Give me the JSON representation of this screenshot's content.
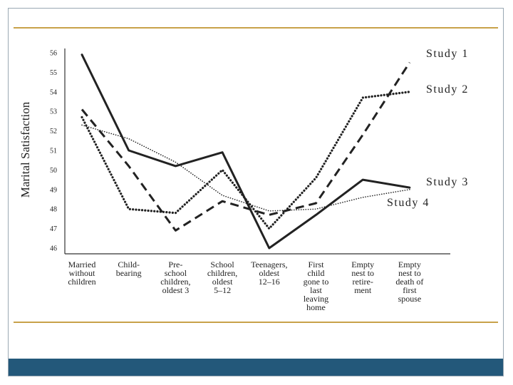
{
  "colors": {
    "bar": "#23587a",
    "panel_rule": "#c8a24a",
    "ink": "#222222"
  },
  "chart_data": {
    "type": "line",
    "ylabel": "Marital Satisfaction",
    "xlabel": "",
    "ylim": [
      46,
      56
    ],
    "yticks": [
      46,
      47,
      48,
      49,
      50,
      51,
      52,
      53,
      54,
      55,
      56
    ],
    "categories": [
      [
        "Married",
        "without",
        "children"
      ],
      [
        "Child-",
        "bearing"
      ],
      [
        "Pre-",
        "school",
        "children,",
        "oldest 3"
      ],
      [
        "School",
        "children,",
        "oldest",
        "5–12"
      ],
      [
        "Teenagers,",
        "oldest",
        "12–16"
      ],
      [
        "First",
        "child",
        "gone to",
        "last",
        "leaving",
        "home"
      ],
      [
        "Empty",
        "nest to",
        "retire-",
        "ment"
      ],
      [
        "Empty",
        "nest to",
        "death of",
        "first",
        "spouse"
      ]
    ],
    "series": [
      {
        "name": "Study 1",
        "label_text": "Study 1",
        "style": "dashed",
        "x": [
          0,
          1,
          2,
          3,
          4,
          5,
          6,
          7
        ],
        "values": [
          53.1,
          50.2,
          46.9,
          48.4,
          47.7,
          48.3,
          51.8,
          55.5
        ]
      },
      {
        "name": "Study 2",
        "label_text": "Study 2",
        "style": "dotted",
        "x": [
          0,
          1,
          2,
          3,
          4,
          5,
          6,
          7
        ],
        "values": [
          52.7,
          48.0,
          47.8,
          50.0,
          47.0,
          49.6,
          53.7,
          54.0
        ]
      },
      {
        "name": "Study 3",
        "label_text": "Study 3",
        "style": "solid",
        "x": [
          0,
          1,
          2,
          3,
          4,
          5,
          6,
          7
        ],
        "values": [
          55.9,
          51.0,
          50.2,
          50.9,
          46.0,
          47.7,
          49.5,
          49.1
        ]
      },
      {
        "name": "Study 4",
        "label_text": "Study 4",
        "style": "fine-dotted",
        "x": [
          0,
          1,
          2,
          3,
          4,
          5,
          6,
          7
        ],
        "values": [
          52.3,
          51.6,
          50.4,
          48.7,
          47.9,
          48.0,
          48.6,
          49.0
        ]
      }
    ]
  }
}
